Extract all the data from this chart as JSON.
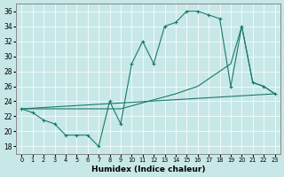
{
  "xlabel": "Humidex (Indice chaleur)",
  "bg_color": "#c8e8e8",
  "line_color": "#1a7a6a",
  "xlim": [
    -0.5,
    23.5
  ],
  "ylim": [
    17,
    37
  ],
  "yticks": [
    18,
    20,
    22,
    24,
    26,
    28,
    30,
    32,
    34,
    36
  ],
  "xticks": [
    0,
    1,
    2,
    3,
    4,
    5,
    6,
    7,
    8,
    9,
    10,
    11,
    12,
    13,
    14,
    15,
    16,
    17,
    18,
    19,
    20,
    21,
    22,
    23
  ],
  "series1_x": [
    0,
    1,
    2,
    3,
    4,
    5,
    6,
    7,
    8,
    9,
    10,
    11,
    12,
    13,
    14,
    15,
    16,
    17,
    18,
    19,
    20,
    21,
    22,
    23
  ],
  "series1_y": [
    23,
    22.5,
    21.5,
    21,
    19.5,
    19.5,
    19.5,
    18,
    24,
    21,
    29,
    32,
    29,
    34,
    34.5,
    36,
    36,
    35.5,
    35,
    26,
    34,
    26.5,
    26,
    25
  ],
  "series2_x": [
    0,
    23
  ],
  "series2_y": [
    23,
    25
  ],
  "series3_x": [
    0,
    9,
    14,
    16,
    19,
    20,
    21,
    22,
    23
  ],
  "series3_y": [
    23,
    23,
    25,
    26,
    29,
    34,
    26.5,
    26,
    25
  ]
}
